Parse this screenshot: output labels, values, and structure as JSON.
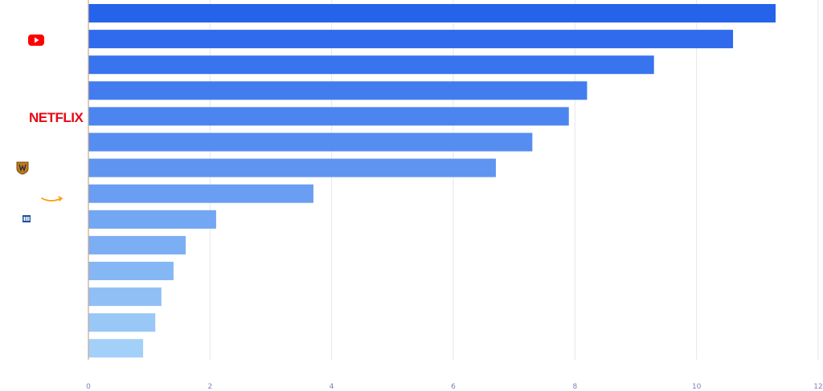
{
  "chart_data": {
    "type": "bar",
    "orientation": "horizontal",
    "title": "",
    "xlabel": "",
    "ylabel": "",
    "xlim": [
      0,
      12
    ],
    "x_ticks": [
      "0",
      "2",
      "4",
      "6",
      "8",
      "10",
      "12"
    ],
    "grid": "vertical",
    "legend": "none",
    "series": [
      {
        "values": [
          11.3,
          10.6,
          9.3,
          8.2,
          7.9,
          7.3,
          6.7,
          3.7,
          2.1,
          1.6,
          1.4,
          1.2,
          1.1,
          0.9
        ]
      }
    ],
    "category_icons": [
      "",
      "youtube-logo",
      "",
      "",
      "netflix-logo",
      "",
      "warner-bros-logo",
      "amazon-logo",
      "nbc-logo",
      "",
      "",
      "",
      "",
      ""
    ],
    "logo_texts": {
      "netflix": "NETFLIX"
    },
    "colors": {
      "bar_start": "#2563eb",
      "bar_end": "#a3d0f8",
      "grid": "#e6e6ee",
      "axis": "#c8a890",
      "tick_label": "#7d7fb8",
      "youtube": "#ff0000",
      "netflix": "#e50914",
      "amazon": "#ff9900",
      "warner": "#c07a1a",
      "nbc": "#1f4f9c"
    }
  }
}
